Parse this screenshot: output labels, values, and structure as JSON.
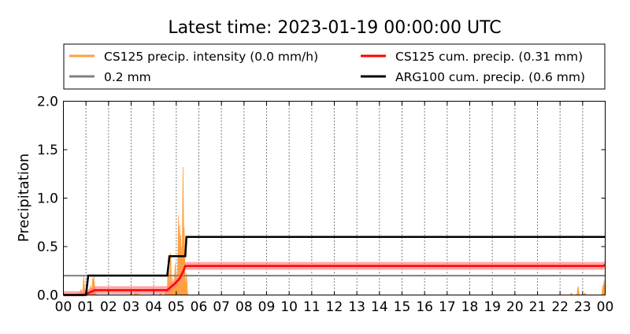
{
  "chart_data": {
    "type": "line",
    "title": "Latest time: 2023-01-19 00:00:00 UTC",
    "ylabel": "Precipitation",
    "xlabel": "",
    "xlim": [
      0,
      24
    ],
    "ylim": [
      0,
      2.0
    ],
    "x_ticks": [
      "00",
      "01",
      "02",
      "03",
      "04",
      "05",
      "06",
      "07",
      "08",
      "09",
      "10",
      "11",
      "12",
      "13",
      "14",
      "15",
      "16",
      "17",
      "18",
      "19",
      "20",
      "21",
      "22",
      "23",
      "00"
    ],
    "y_ticks": [
      "0.0",
      "0.5",
      "1.0",
      "1.5",
      "2.0"
    ],
    "legend_position": "top",
    "series": [
      {
        "name": "CS125 precip. intensity (0.0 mm/h)",
        "color": "#ffa040",
        "style": "spikes",
        "x": [
          0.7,
          0.78,
          0.85,
          0.9,
          0.95,
          1.05,
          1.1,
          1.2,
          1.3,
          1.35,
          1.4,
          3.0,
          3.2,
          3.3,
          4.3,
          4.55,
          4.65,
          4.75,
          4.85,
          4.95,
          5.0,
          5.05,
          5.1,
          5.15,
          5.2,
          5.25,
          5.3,
          5.35,
          5.45,
          22.5,
          22.8,
          23.1,
          23.9,
          23.95
        ],
        "values": [
          0.02,
          0.06,
          0.03,
          0.19,
          0.05,
          0.03,
          0.04,
          0.1,
          0.18,
          0.19,
          0.08,
          0.02,
          0.02,
          0.01,
          0.02,
          0.06,
          0.4,
          0.44,
          0.18,
          0.32,
          0.25,
          0.15,
          0.82,
          0.72,
          0.62,
          0.5,
          1.32,
          0.7,
          0.22,
          0.02,
          0.09,
          0.02,
          0.1,
          0.15
        ]
      },
      {
        "name": "0.2 mm",
        "color": "#808080",
        "style": "line",
        "x": [
          0,
          24
        ],
        "values": [
          0.2,
          0.2
        ]
      },
      {
        "name": "CS125 cum. precip. (0.31 mm)",
        "color": "#ff0000",
        "band_color": "#ff8080",
        "band": 0.04,
        "style": "line",
        "x": [
          0,
          0.9,
          1.0,
          1.1,
          1.3,
          1.4,
          4.6,
          4.75,
          4.95,
          5.15,
          5.3,
          5.4,
          23.9,
          24
        ],
        "values": [
          0,
          0,
          0.01,
          0.02,
          0.04,
          0.05,
          0.05,
          0.08,
          0.12,
          0.17,
          0.24,
          0.3,
          0.3,
          0.31
        ]
      },
      {
        "name": "ARG100 cum. precip. (0.6 mm)",
        "color": "#000000",
        "style": "step",
        "x": [
          0,
          1.0,
          1.1,
          4.6,
          4.7,
          5.4,
          5.45,
          24
        ],
        "values": [
          0,
          0,
          0.2,
          0.2,
          0.4,
          0.4,
          0.6,
          0.6
        ]
      }
    ]
  }
}
